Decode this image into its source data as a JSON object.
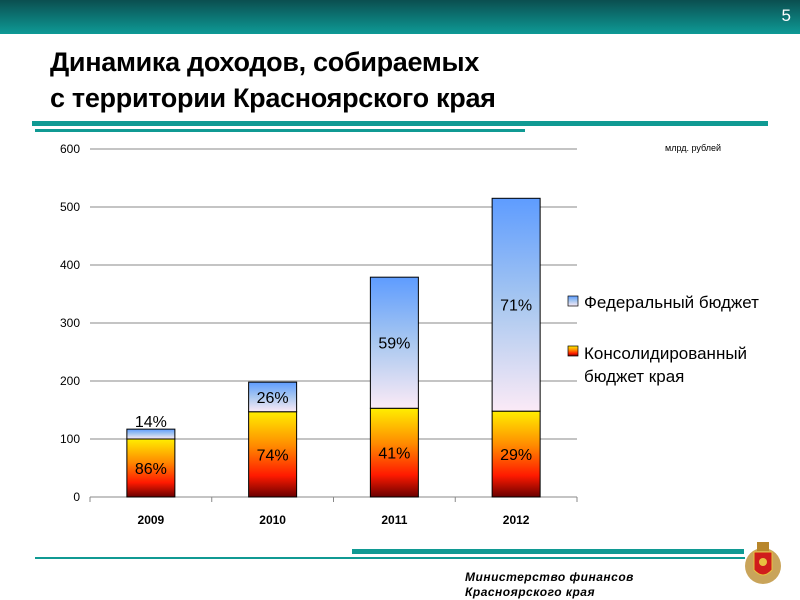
{
  "slide_number": "5",
  "title_line1": "Динамика доходов, собираемых",
  "title_line2": "с территории Красноярского края",
  "unit_label": "млрд. рублей",
  "footer_line1": "Министерство финансов",
  "footer_line2": "Красноярского края",
  "emblem_icon": "krasnoyarsk-coat-of-arms",
  "chart_data": {
    "type": "bar",
    "stacked": true,
    "categories": [
      "2009",
      "2010",
      "2011",
      "2012"
    ],
    "series": [
      {
        "name": "Консолидированный бюджет края",
        "legend_line1": "Консолидированный",
        "legend_line2": "бюджет края",
        "values": [
          100,
          147,
          153,
          148
        ],
        "labels": [
          "86%",
          "74%",
          "41%",
          "29%"
        ],
        "color": "#ff6a00"
      },
      {
        "name": "Федеральный бюджет",
        "values": [
          17,
          51,
          226,
          367
        ],
        "labels": [
          "14%",
          "26%",
          "59%",
          "71%"
        ],
        "color": "#66a3ff"
      }
    ],
    "yticks": [
      "0",
      "100",
      "200",
      "300",
      "400",
      "500",
      "600"
    ],
    "ylim": [
      0,
      600
    ],
    "grid": true,
    "legend": "right"
  }
}
